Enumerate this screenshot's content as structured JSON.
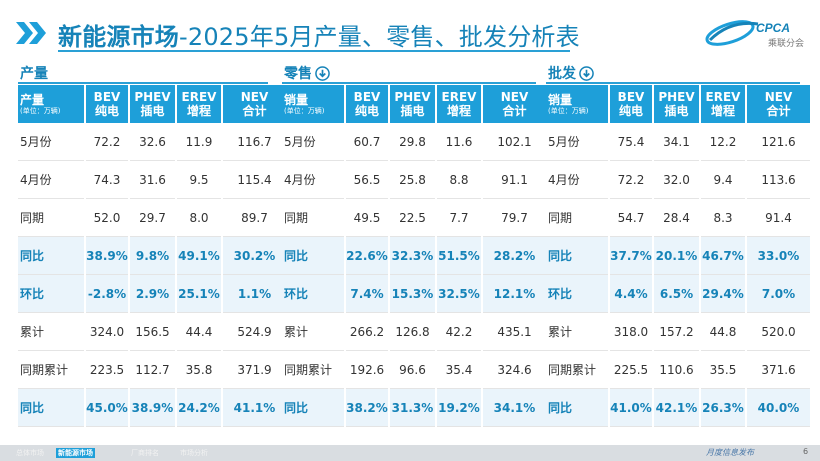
{
  "header": {
    "title_main": "新能源市场",
    "title_rest": "-2025年5月产量、零售、批发分析表",
    "logo_text": "CPCA",
    "logo_sub": "乘联分会"
  },
  "icons": {
    "chevrons": "double-chevron-right-icon",
    "down": "circle-down-arrow-icon"
  },
  "colors": {
    "accent": "#1e9fd9",
    "title": "#1683b8",
    "highlight_bg": "#eaf4fb"
  },
  "production": {
    "label": "产量",
    "header": [
      "产量",
      "BEV",
      "PHEV",
      "EREV",
      "NEV"
    ],
    "header_sub": [
      "(单位：万辆)",
      "纯电",
      "插电",
      "增程",
      "合计"
    ],
    "rows": [
      [
        "5月份",
        "72.2",
        "32.6",
        "11.9",
        "116.7"
      ],
      [
        "4月份",
        "74.3",
        "31.6",
        "9.5",
        "115.4"
      ],
      [
        "同期",
        "52.0",
        "29.7",
        "8.0",
        "89.7"
      ],
      [
        "同比",
        "38.9%",
        "9.8%",
        "49.1%",
        "30.2%"
      ],
      [
        "环比",
        "-2.8%",
        "2.9%",
        "25.1%",
        "1.1%"
      ],
      [
        "累计",
        "324.0",
        "156.5",
        "44.4",
        "524.9"
      ],
      [
        "同期累计",
        "223.5",
        "112.7",
        "35.8",
        "371.9"
      ],
      [
        "同比",
        "45.0%",
        "38.9%",
        "24.2%",
        "41.1%"
      ]
    ]
  },
  "retail": {
    "label": "零售",
    "header": [
      "销量",
      "BEV",
      "PHEV",
      "EREV",
      "NEV"
    ],
    "header_sub": [
      "(单位：万辆)",
      "纯电",
      "插电",
      "增程",
      "合计"
    ],
    "rows": [
      [
        "5月份",
        "60.7",
        "29.8",
        "11.6",
        "102.1"
      ],
      [
        "4月份",
        "56.5",
        "25.8",
        "8.8",
        "91.1"
      ],
      [
        "同期",
        "49.5",
        "22.5",
        "7.7",
        "79.7"
      ],
      [
        "同比",
        "22.6%",
        "32.3%",
        "51.5%",
        "28.2%"
      ],
      [
        "环比",
        "7.4%",
        "15.3%",
        "32.5%",
        "12.1%"
      ],
      [
        "累计",
        "266.2",
        "126.8",
        "42.2",
        "435.1"
      ],
      [
        "同期累计",
        "192.6",
        "96.6",
        "35.4",
        "324.6"
      ],
      [
        "同比",
        "38.2%",
        "31.3%",
        "19.2%",
        "34.1%"
      ]
    ]
  },
  "wholesale": {
    "label": "批发",
    "header": [
      "销量",
      "BEV",
      "PHEV",
      "EREV",
      "NEV"
    ],
    "header_sub": [
      "(单位：万辆)",
      "纯电",
      "插电",
      "增程",
      "合计"
    ],
    "rows": [
      [
        "5月份",
        "75.4",
        "34.1",
        "12.2",
        "121.6"
      ],
      [
        "4月份",
        "72.2",
        "32.0",
        "9.4",
        "113.6"
      ],
      [
        "同期",
        "54.7",
        "28.4",
        "8.3",
        "91.4"
      ],
      [
        "同比",
        "37.7%",
        "20.1%",
        "46.7%",
        "33.0%"
      ],
      [
        "环比",
        "4.4%",
        "6.5%",
        "29.4%",
        "7.0%"
      ],
      [
        "累计",
        "318.0",
        "157.2",
        "44.8",
        "520.0"
      ],
      [
        "同期累计",
        "225.5",
        "110.6",
        "35.5",
        "371.6"
      ],
      [
        "同比",
        "41.0%",
        "42.1%",
        "26.3%",
        "40.0%"
      ]
    ]
  },
  "footer": {
    "tabs": [
      "总体市场",
      "新能源市场",
      "厂商排名",
      "市场分析"
    ],
    "right_text": "月度信息发布",
    "page": "6"
  }
}
